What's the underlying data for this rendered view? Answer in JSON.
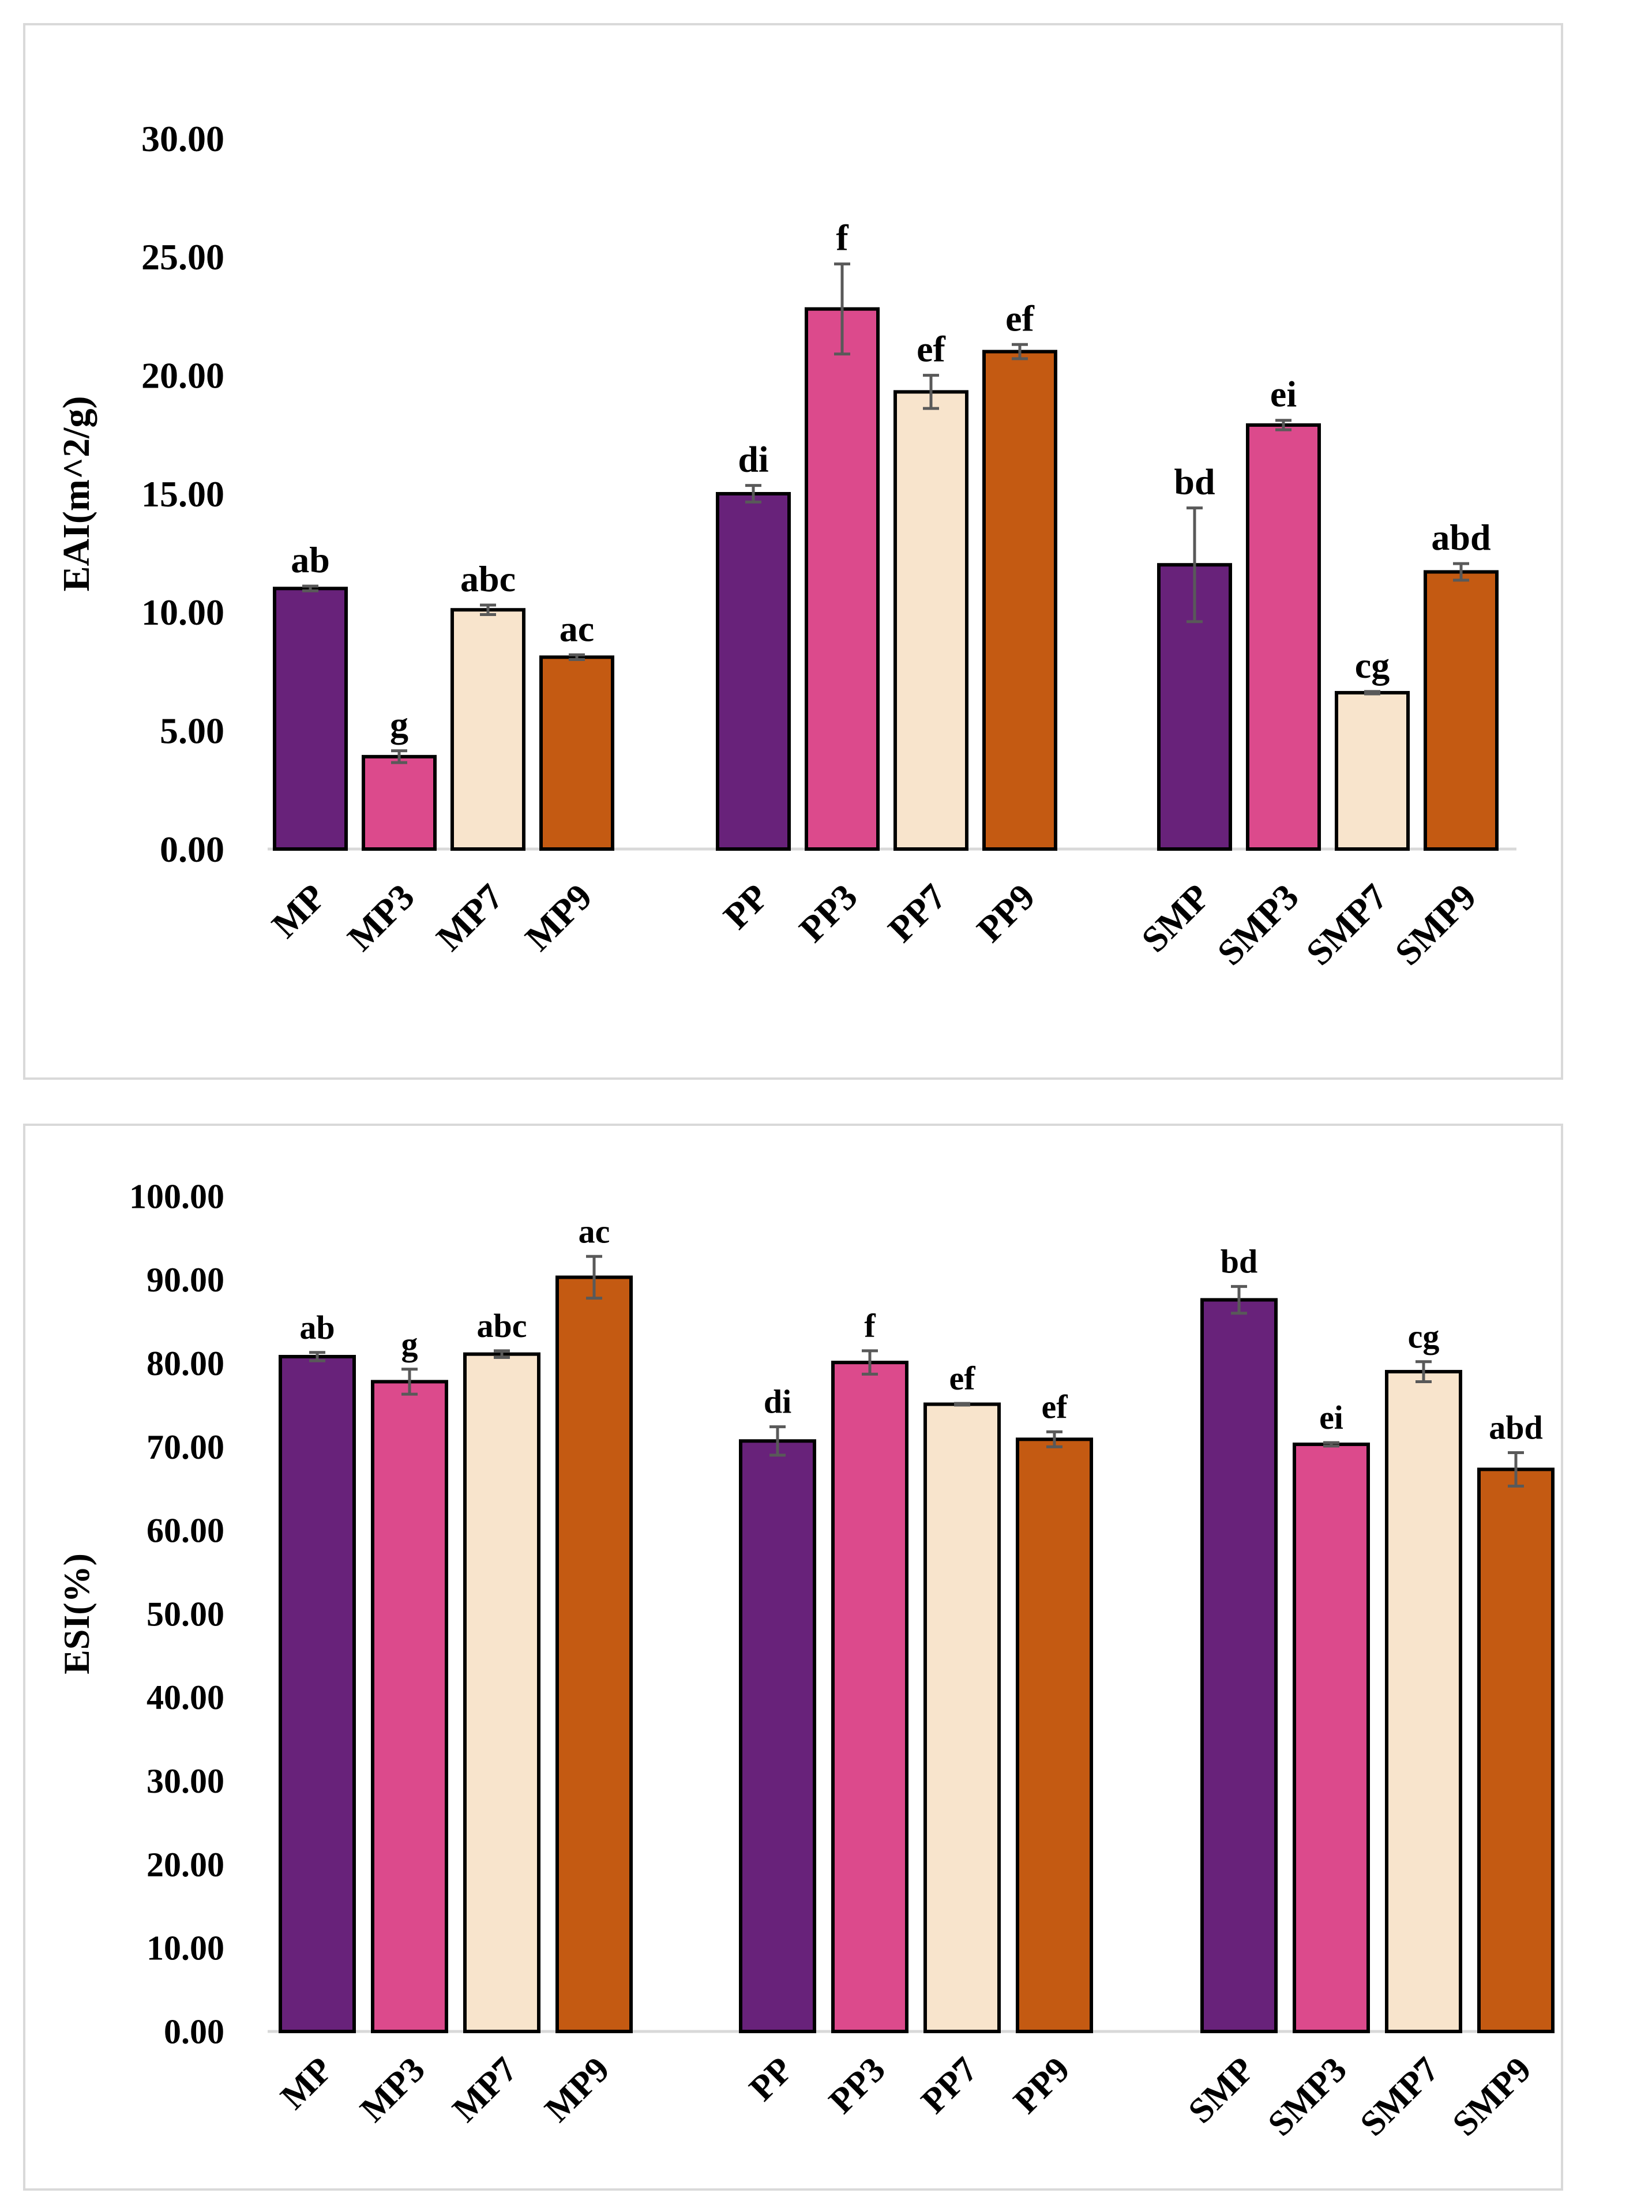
{
  "chart_data": [
    {
      "type": "bar",
      "ylabel": "EAI(m^2/g)",
      "ylim": [
        0,
        30
      ],
      "yticks": [
        "0.00",
        "5.00",
        "10.00",
        "15.00",
        "20.00",
        "25.00",
        "30.00"
      ],
      "groups": [
        {
          "bars": [
            {
              "label": "MP",
              "value": 11.0,
              "err": 0.1,
              "letter": "ab",
              "color": "#68227a"
            },
            {
              "label": "MP3",
              "value": 3.9,
              "err": 0.25,
              "letter": "g",
              "color": "#dc4a8c"
            },
            {
              "label": "MP7",
              "value": 10.1,
              "err": 0.2,
              "letter": "abc",
              "color": "#f8e4cc"
            },
            {
              "label": "MP9",
              "value": 8.1,
              "err": 0.1,
              "letter": "ac",
              "color": "#c45a12"
            }
          ]
        },
        {
          "bars": [
            {
              "label": "PP",
              "value": 15.0,
              "err": 0.35,
              "letter": "di",
              "color": "#68227a"
            },
            {
              "label": "PP3",
              "value": 22.8,
              "err": 1.9,
              "letter": "f",
              "color": "#dc4a8c"
            },
            {
              "label": "PP7",
              "value": 19.3,
              "err": 0.7,
              "letter": "ef",
              "color": "#f8e4cc"
            },
            {
              "label": "PP9",
              "value": 21.0,
              "err": 0.3,
              "letter": "ef",
              "color": "#c45a12"
            }
          ]
        },
        {
          "bars": [
            {
              "label": "SMP",
              "value": 12.0,
              "err": 2.4,
              "letter": "bd",
              "color": "#68227a"
            },
            {
              "label": "SMP3",
              "value": 17.9,
              "err": 0.2,
              "letter": "ei",
              "color": "#dc4a8c"
            },
            {
              "label": "SMP7",
              "value": 6.6,
              "err": 0.05,
              "letter": "cg",
              "color": "#f8e4cc"
            },
            {
              "label": "SMP9",
              "value": 11.7,
              "err": 0.35,
              "letter": "abd",
              "color": "#c45a12"
            }
          ]
        }
      ]
    },
    {
      "type": "bar",
      "ylabel": "ESI(%)",
      "ylim": [
        0,
        100
      ],
      "yticks": [
        "0.00",
        "10.00",
        "20.00",
        "30.00",
        "40.00",
        "50.00",
        "60.00",
        "70.00",
        "80.00",
        "90.00",
        "100.00"
      ],
      "groups": [
        {
          "bars": [
            {
              "label": "MP",
              "value": 80.8,
              "err": 0.5,
              "letter": "ab",
              "color": "#68227a"
            },
            {
              "label": "MP3",
              "value": 77.8,
              "err": 1.5,
              "letter": "g",
              "color": "#dc4a8c"
            },
            {
              "label": "MP7",
              "value": 81.1,
              "err": 0.4,
              "letter": "abc",
              "color": "#f8e4cc"
            },
            {
              "label": "MP9",
              "value": 90.3,
              "err": 2.5,
              "letter": "ac",
              "color": "#c45a12"
            }
          ]
        },
        {
          "bars": [
            {
              "label": "PP",
              "value": 70.7,
              "err": 1.7,
              "letter": "di",
              "color": "#68227a"
            },
            {
              "label": "PP3",
              "value": 80.1,
              "err": 1.4,
              "letter": "f",
              "color": "#dc4a8c"
            },
            {
              "label": "PP7",
              "value": 75.1,
              "err": 0.1,
              "letter": "ef",
              "color": "#f8e4cc"
            },
            {
              "label": "PP9",
              "value": 70.9,
              "err": 0.9,
              "letter": "ef",
              "color": "#c45a12"
            }
          ]
        },
        {
          "bars": [
            {
              "label": "SMP",
              "value": 87.6,
              "err": 1.6,
              "letter": "bd",
              "color": "#68227a"
            },
            {
              "label": "SMP3",
              "value": 70.3,
              "err": 0.2,
              "letter": "ei",
              "color": "#dc4a8c"
            },
            {
              "label": "SMP7",
              "value": 79.0,
              "err": 1.2,
              "letter": "cg",
              "color": "#f8e4cc"
            },
            {
              "label": "SMP9",
              "value": 67.3,
              "err": 2.0,
              "letter": "abd",
              "color": "#c45a12"
            }
          ]
        }
      ]
    }
  ]
}
